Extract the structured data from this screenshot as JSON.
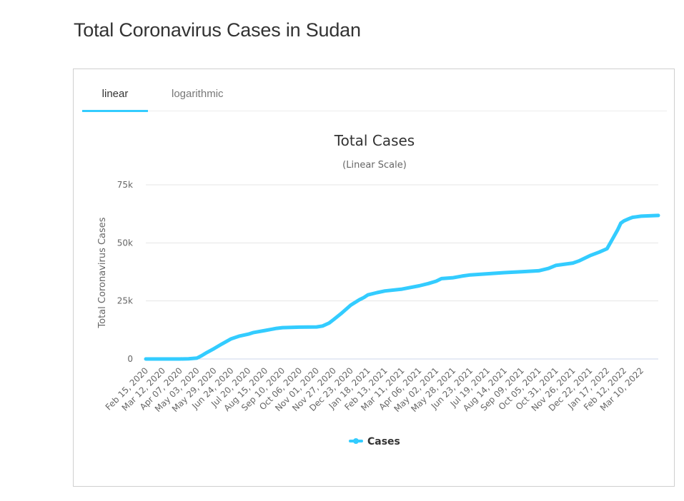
{
  "page": {
    "title": "Total Coronavirus Cases in Sudan"
  },
  "tabs": [
    {
      "label": "linear",
      "active": true
    },
    {
      "label": "logarithmic",
      "active": false
    }
  ],
  "colors": {
    "accent": "#33ccff",
    "series": "#33ccff",
    "grid": "#e6e6e6",
    "axis": "#ccd6eb",
    "text": "#333333",
    "muted": "#666666"
  },
  "chart_data": {
    "type": "line",
    "title": "Total Cases",
    "subtitle": "(Linear Scale)",
    "xlabel": "",
    "ylabel": "Total Coronavirus Cases",
    "ylim": [
      0,
      75000
    ],
    "yticks": [
      0,
      25000,
      50000,
      75000
    ],
    "ytick_labels": [
      "0",
      "25k",
      "50k",
      "75k"
    ],
    "xlim": [
      "2020-02-15",
      "2022-04-05"
    ],
    "xtick_labels": [
      "Feb 15, 2020",
      "Mar 12, 2020",
      "Apr 07, 2020",
      "May 03, 2020",
      "May 29, 2020",
      "Jun 24, 2020",
      "Jul 20, 2020",
      "Aug 15, 2020",
      "Sep 10, 2020",
      "Oct 06, 2020",
      "Nov 01, 2020",
      "Nov 27, 2020",
      "Dec 23, 2020",
      "Jan 18, 2021",
      "Feb 13, 2021",
      "Mar 11, 2021",
      "Apr 06, 2021",
      "May 02, 2021",
      "May 28, 2021",
      "Jun 23, 2021",
      "Jul 19, 2021",
      "Aug 14, 2021",
      "Sep 09, 2021",
      "Oct 05, 2021",
      "Oct 31, 2021",
      "Nov 26, 2021",
      "Dec 22, 2021",
      "Jan 17, 2022",
      "Feb 12, 2022",
      "Mar 10, 2022"
    ],
    "grid": true,
    "legend": "bottom-center",
    "series": [
      {
        "name": "Cases",
        "points": [
          [
            "2020-02-15",
            0
          ],
          [
            "2020-03-12",
            0
          ],
          [
            "2020-04-07",
            10
          ],
          [
            "2020-04-20",
            100
          ],
          [
            "2020-05-03",
            400
          ],
          [
            "2020-05-10",
            1400
          ],
          [
            "2020-05-18",
            2800
          ],
          [
            "2020-05-29",
            4500
          ],
          [
            "2020-06-10",
            6500
          ],
          [
            "2020-06-24",
            8700
          ],
          [
            "2020-07-07",
            9900
          ],
          [
            "2020-07-20",
            10700
          ],
          [
            "2020-07-28",
            11400
          ],
          [
            "2020-08-15",
            12300
          ],
          [
            "2020-09-01",
            13200
          ],
          [
            "2020-09-10",
            13500
          ],
          [
            "2020-10-06",
            13700
          ],
          [
            "2020-11-01",
            13800
          ],
          [
            "2020-11-10",
            14200
          ],
          [
            "2020-11-20",
            15500
          ],
          [
            "2020-11-27",
            17000
          ],
          [
            "2020-12-08",
            19500
          ],
          [
            "2020-12-23",
            23200
          ],
          [
            "2021-01-05",
            25500
          ],
          [
            "2021-01-12",
            26500
          ],
          [
            "2021-01-18",
            27600
          ],
          [
            "2021-02-01",
            28600
          ],
          [
            "2021-02-13",
            29300
          ],
          [
            "2021-03-11",
            30100
          ],
          [
            "2021-04-06",
            31500
          ],
          [
            "2021-04-20",
            32500
          ],
          [
            "2021-05-02",
            33500
          ],
          [
            "2021-05-10",
            34600
          ],
          [
            "2021-05-28",
            35000
          ],
          [
            "2021-06-10",
            35700
          ],
          [
            "2021-06-23",
            36200
          ],
          [
            "2021-07-19",
            36700
          ],
          [
            "2021-08-14",
            37200
          ],
          [
            "2021-09-09",
            37600
          ],
          [
            "2021-10-05",
            38000
          ],
          [
            "2021-10-20",
            39000
          ],
          [
            "2021-10-31",
            40300
          ],
          [
            "2021-11-26",
            41300
          ],
          [
            "2021-12-05",
            42200
          ],
          [
            "2021-12-22",
            44500
          ],
          [
            "2022-01-05",
            46000
          ],
          [
            "2022-01-17",
            47500
          ],
          [
            "2022-01-26",
            52000
          ],
          [
            "2022-02-02",
            55500
          ],
          [
            "2022-02-07",
            58500
          ],
          [
            "2022-02-12",
            59500
          ],
          [
            "2022-02-20",
            60500
          ],
          [
            "2022-02-25",
            61000
          ],
          [
            "2022-03-10",
            61500
          ],
          [
            "2022-04-05",
            61800
          ]
        ]
      }
    ]
  }
}
